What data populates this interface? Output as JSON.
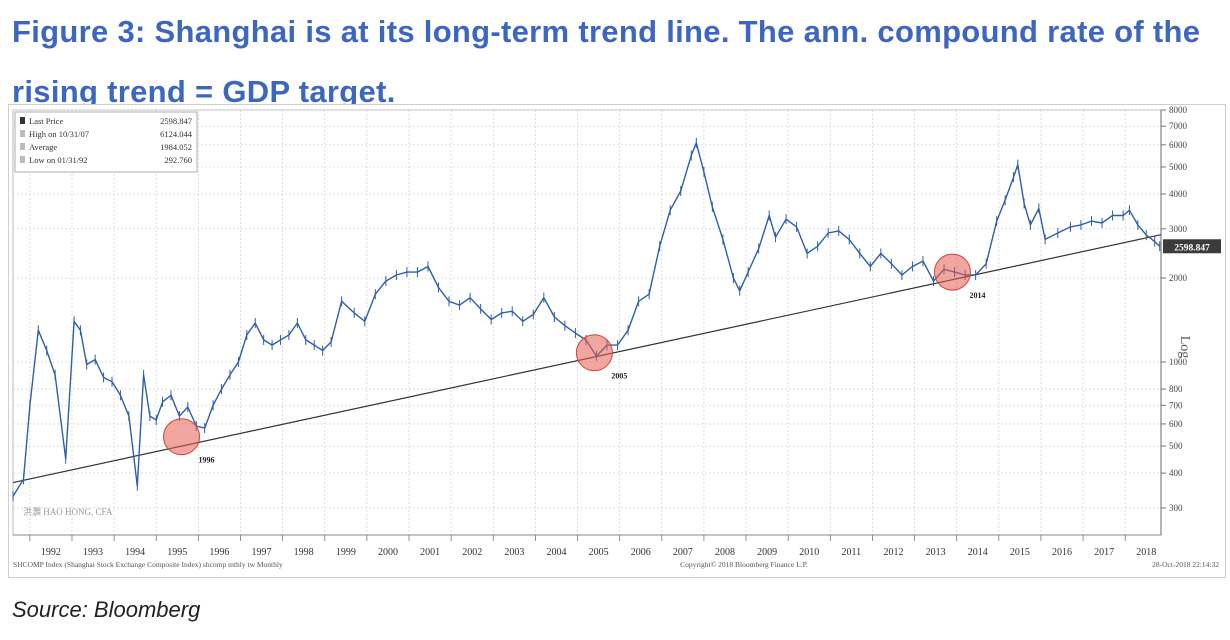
{
  "figure": {
    "title": "Figure 3: Shanghai is at its long-term trend line. The ann. compound rate of the rising trend = GDP target.",
    "source": "Source: Bloomberg"
  },
  "colors": {
    "title": "#3d66c1",
    "price": "#2f5fa8",
    "trend": "#333333",
    "highlight": "#e85c52",
    "grid": "#d6d6d6"
  },
  "chart_data": {
    "type": "line",
    "scale": "log",
    "ylim": [
      240,
      8000
    ],
    "y_ticks": [
      300,
      400,
      500,
      600,
      700,
      800,
      1000,
      2000,
      3000,
      4000,
      5000,
      6000,
      7000,
      8000
    ],
    "y_label": "Log",
    "x_ticks": [
      "1992",
      "1993",
      "1994",
      "1995",
      "1996",
      "1997",
      "1998",
      "1999",
      "2000",
      "2001",
      "2002",
      "2003",
      "2004",
      "2005",
      "2006",
      "2007",
      "2008",
      "2009",
      "2010",
      "2011",
      "2012",
      "2013",
      "2014",
      "2015",
      "2016",
      "2017",
      "2018"
    ],
    "xlim": [
      1991.6,
      2018.85
    ],
    "legend": {
      "position": "top-left",
      "entries": [
        {
          "label": "Last Price",
          "value": "2598.847"
        },
        {
          "label": "High on 10/31/07",
          "value": "6124.044"
        },
        {
          "label": "Average",
          "value": "1984.052"
        },
        {
          "label": "Low on 01/31/92",
          "value": "292.760"
        }
      ]
    },
    "series": [
      {
        "values": [
          [
            1991.6,
            330
          ],
          [
            1991.85,
            380
          ],
          [
            1992.0,
            700
          ],
          [
            1992.2,
            1300
          ],
          [
            1992.4,
            1100
          ],
          [
            1992.6,
            900
          ],
          [
            1992.85,
            450
          ],
          [
            1993.05,
            1400
          ],
          [
            1993.2,
            1300
          ],
          [
            1993.35,
            980
          ],
          [
            1993.55,
            1020
          ],
          [
            1993.75,
            880
          ],
          [
            1993.95,
            850
          ],
          [
            1994.15,
            760
          ],
          [
            1994.35,
            640
          ],
          [
            1994.55,
            360
          ],
          [
            1994.7,
            900
          ],
          [
            1994.85,
            640
          ],
          [
            1995.0,
            620
          ],
          [
            1995.15,
            720
          ],
          [
            1995.35,
            760
          ],
          [
            1995.55,
            640
          ],
          [
            1995.75,
            690
          ],
          [
            1995.95,
            590
          ],
          [
            1996.15,
            580
          ],
          [
            1996.35,
            700
          ],
          [
            1996.55,
            800
          ],
          [
            1996.75,
            900
          ],
          [
            1996.95,
            1000
          ],
          [
            1997.15,
            1250
          ],
          [
            1997.35,
            1380
          ],
          [
            1997.55,
            1200
          ],
          [
            1997.75,
            1150
          ],
          [
            1997.95,
            1200
          ],
          [
            1998.15,
            1250
          ],
          [
            1998.35,
            1380
          ],
          [
            1998.55,
            1200
          ],
          [
            1998.75,
            1150
          ],
          [
            1998.95,
            1100
          ],
          [
            1999.15,
            1180
          ],
          [
            1999.4,
            1650
          ],
          [
            1999.7,
            1500
          ],
          [
            1999.95,
            1400
          ],
          [
            2000.2,
            1750
          ],
          [
            2000.45,
            1950
          ],
          [
            2000.7,
            2050
          ],
          [
            2000.95,
            2100
          ],
          [
            2001.2,
            2100
          ],
          [
            2001.45,
            2200
          ],
          [
            2001.7,
            1850
          ],
          [
            2001.95,
            1650
          ],
          [
            2002.2,
            1600
          ],
          [
            2002.45,
            1700
          ],
          [
            2002.7,
            1550
          ],
          [
            2002.95,
            1420
          ],
          [
            2003.2,
            1500
          ],
          [
            2003.45,
            1520
          ],
          [
            2003.7,
            1400
          ],
          [
            2003.95,
            1480
          ],
          [
            2004.2,
            1700
          ],
          [
            2004.45,
            1450
          ],
          [
            2004.7,
            1350
          ],
          [
            2004.95,
            1270
          ],
          [
            2005.2,
            1200
          ],
          [
            2005.45,
            1050
          ],
          [
            2005.7,
            1150
          ],
          [
            2005.95,
            1150
          ],
          [
            2006.2,
            1300
          ],
          [
            2006.45,
            1650
          ],
          [
            2006.7,
            1750
          ],
          [
            2006.95,
            2600
          ],
          [
            2007.2,
            3500
          ],
          [
            2007.45,
            4100
          ],
          [
            2007.7,
            5500
          ],
          [
            2007.82,
            6100
          ],
          [
            2008.0,
            4800
          ],
          [
            2008.2,
            3600
          ],
          [
            2008.45,
            2750
          ],
          [
            2008.7,
            2000
          ],
          [
            2008.85,
            1800
          ],
          [
            2009.05,
            2100
          ],
          [
            2009.3,
            2550
          ],
          [
            2009.55,
            3350
          ],
          [
            2009.7,
            2800
          ],
          [
            2009.95,
            3250
          ],
          [
            2010.2,
            3050
          ],
          [
            2010.45,
            2450
          ],
          [
            2010.7,
            2600
          ],
          [
            2010.95,
            2900
          ],
          [
            2011.2,
            2950
          ],
          [
            2011.45,
            2750
          ],
          [
            2011.7,
            2450
          ],
          [
            2011.95,
            2200
          ],
          [
            2012.2,
            2450
          ],
          [
            2012.45,
            2250
          ],
          [
            2012.7,
            2050
          ],
          [
            2012.95,
            2200
          ],
          [
            2013.2,
            2300
          ],
          [
            2013.45,
            1950
          ],
          [
            2013.7,
            2150
          ],
          [
            2013.95,
            2100
          ],
          [
            2014.2,
            2050
          ],
          [
            2014.45,
            2050
          ],
          [
            2014.7,
            2250
          ],
          [
            2014.95,
            3200
          ],
          [
            2015.15,
            3800
          ],
          [
            2015.35,
            4600
          ],
          [
            2015.45,
            5100
          ],
          [
            2015.6,
            3700
          ],
          [
            2015.75,
            3100
          ],
          [
            2015.95,
            3550
          ],
          [
            2016.1,
            2750
          ],
          [
            2016.4,
            2900
          ],
          [
            2016.7,
            3050
          ],
          [
            2016.95,
            3100
          ],
          [
            2017.2,
            3200
          ],
          [
            2017.45,
            3150
          ],
          [
            2017.7,
            3350
          ],
          [
            2017.95,
            3350
          ],
          [
            2018.1,
            3500
          ],
          [
            2018.3,
            3100
          ],
          [
            2018.5,
            2850
          ],
          [
            2018.7,
            2700
          ],
          [
            2018.82,
            2598.847
          ]
        ]
      },
      {
        "values": [
          [
            1991.6,
            370
          ],
          [
            2018.85,
            2860
          ]
        ]
      }
    ],
    "annotations": [
      {
        "label": "1996",
        "x": 1995.6,
        "y": 540
      },
      {
        "label": "2005",
        "x": 2005.4,
        "y": 1080
      },
      {
        "label": "2014",
        "x": 2013.9,
        "y": 2100
      }
    ],
    "last_price_label": "2598.847",
    "footer": {
      "left": "SHCOMP Index (Shanghai Stock Exchange Composite Index) shcomp mthly tw  Monthly",
      "center": "Copyright© 2018 Bloomberg Finance L.P.",
      "right": "28-Oct-2018 22:14:32"
    },
    "watermark": "洪灝 HAO HONG, CFA"
  }
}
